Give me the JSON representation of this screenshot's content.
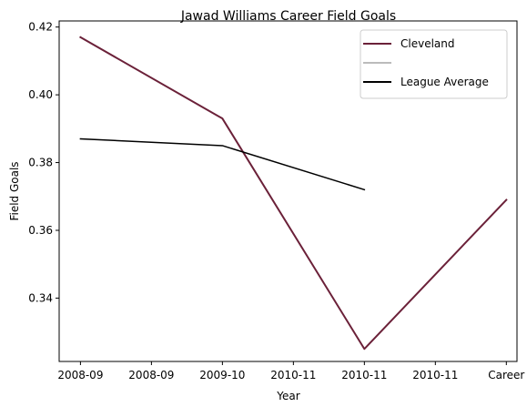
{
  "chart_data": {
    "type": "line",
    "title": "Jawad Williams Career Field Goals",
    "xlabel": "Year",
    "ylabel": "Field Goals",
    "x_tick_labels": [
      "2008-09",
      "2008-09",
      "2009-10",
      "2010-11",
      "2010-11",
      "2010-11",
      "Career"
    ],
    "x_tick_positions": [
      0,
      1,
      2,
      3,
      4,
      5,
      6
    ],
    "y_ticks": [
      0.34,
      0.36,
      0.38,
      0.4,
      0.42
    ],
    "y_tick_labels": [
      "0.34",
      "0.36",
      "0.38",
      "0.40",
      "0.42"
    ],
    "xlim": [
      -0.3,
      6.15
    ],
    "ylim": [
      0.3213,
      0.4218
    ],
    "grid": false,
    "legend_position": "top-right",
    "series": [
      {
        "name": "Cleveland",
        "color": "#6b2139",
        "x": [
          0,
          2,
          4,
          6
        ],
        "y": [
          0.417,
          0.393,
          0.325,
          0.369
        ]
      },
      {
        "name": "",
        "color": "#bbbbbb",
        "x": [],
        "y": []
      },
      {
        "name": "League Average",
        "color": "#000000",
        "x": [
          0,
          2,
          4
        ],
        "y": [
          0.387,
          0.385,
          0.372
        ]
      }
    ]
  }
}
